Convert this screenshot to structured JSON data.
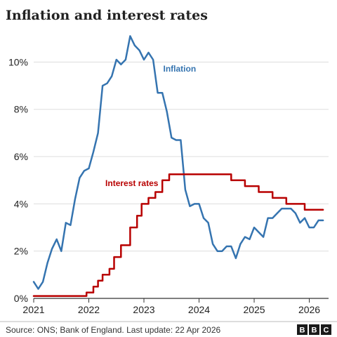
{
  "chart_data": {
    "type": "line",
    "title": "Inflation and interest rates",
    "xlabel": "",
    "ylabel": "",
    "xlim": [
      2021.0,
      2026.35
    ],
    "ylim": [
      0,
      11.2
    ],
    "grid": true,
    "x_ticks": [
      {
        "value": 2021,
        "label": "2021"
      },
      {
        "value": 2022,
        "label": "2022"
      },
      {
        "value": 2023,
        "label": "2023"
      },
      {
        "value": 2024,
        "label": "2024"
      },
      {
        "value": 2025,
        "label": "2025"
      },
      {
        "value": 2026,
        "label": "2026"
      }
    ],
    "y_ticks": [
      {
        "value": 0,
        "label": "0%"
      },
      {
        "value": 2,
        "label": "2%"
      },
      {
        "value": 4,
        "label": "4%"
      },
      {
        "value": 6,
        "label": "6%"
      },
      {
        "value": 8,
        "label": "8%"
      },
      {
        "value": 10,
        "label": "10%"
      }
    ],
    "series": [
      {
        "name": "Inflation",
        "color": "#3574b0",
        "step": false,
        "label_at": {
          "x": 2023.35,
          "y": 9.6
        },
        "x": [
          2021.0,
          2021.083,
          2021.167,
          2021.25,
          2021.333,
          2021.417,
          2021.5,
          2021.583,
          2021.667,
          2021.75,
          2021.833,
          2021.917,
          2022.0,
          2022.083,
          2022.167,
          2022.25,
          2022.333,
          2022.417,
          2022.5,
          2022.583,
          2022.667,
          2022.75,
          2022.833,
          2022.917,
          2023.0,
          2023.083,
          2023.167,
          2023.25,
          2023.333,
          2023.417,
          2023.5,
          2023.583,
          2023.667,
          2023.75,
          2023.833,
          2023.917,
          2024.0,
          2024.083,
          2024.167,
          2024.25,
          2024.333,
          2024.417,
          2024.5,
          2024.583,
          2024.667,
          2024.75,
          2024.833,
          2024.917,
          2025.0,
          2025.083,
          2025.167,
          2025.25,
          2025.333,
          2025.417,
          2025.5,
          2025.583,
          2025.667,
          2025.75,
          2025.833,
          2025.917,
          2026.0,
          2026.083,
          2026.167,
          2026.25
        ],
        "values": [
          0.7,
          0.4,
          0.7,
          1.5,
          2.1,
          2.5,
          2.0,
          3.2,
          3.1,
          4.2,
          5.1,
          5.4,
          5.5,
          6.2,
          7.0,
          9.0,
          9.1,
          9.4,
          10.1,
          9.9,
          10.1,
          11.1,
          10.7,
          10.5,
          10.1,
          10.4,
          10.1,
          8.7,
          8.7,
          7.9,
          6.8,
          6.7,
          6.7,
          4.6,
          3.9,
          4.0,
          4.0,
          3.4,
          3.2,
          2.3,
          2.0,
          2.0,
          2.2,
          2.2,
          1.7,
          2.3,
          2.6,
          2.5,
          3.0,
          2.8,
          2.6,
          3.4,
          3.4,
          3.6,
          3.8,
          3.8,
          3.8,
          3.6,
          3.2,
          3.4,
          3.0,
          3.0,
          3.3,
          3.3
        ]
      },
      {
        "name": "Interest rates",
        "color": "#b80000",
        "step": true,
        "label_at": {
          "x": 2022.3,
          "y": 4.75
        },
        "x": [
          2021.0,
          2021.958,
          2022.083,
          2022.167,
          2022.25,
          2022.375,
          2022.458,
          2022.583,
          2022.75,
          2022.875,
          2022.958,
          2023.083,
          2023.208,
          2023.333,
          2023.458,
          2023.583,
          2024.583,
          2024.833,
          2025.083,
          2025.333,
          2025.583,
          2025.917,
          2026.25
        ],
        "values": [
          0.1,
          0.25,
          0.5,
          0.75,
          1.0,
          1.25,
          1.75,
          2.25,
          3.0,
          3.5,
          4.0,
          4.25,
          4.5,
          5.0,
          5.25,
          5.25,
          5.0,
          4.75,
          4.5,
          4.25,
          4.0,
          3.75,
          3.75
        ]
      }
    ]
  },
  "footer": {
    "source": "Source: ONS; Bank of England. Last update: 22 Apr 2026",
    "logo_letters": [
      "B",
      "B",
      "C"
    ]
  }
}
